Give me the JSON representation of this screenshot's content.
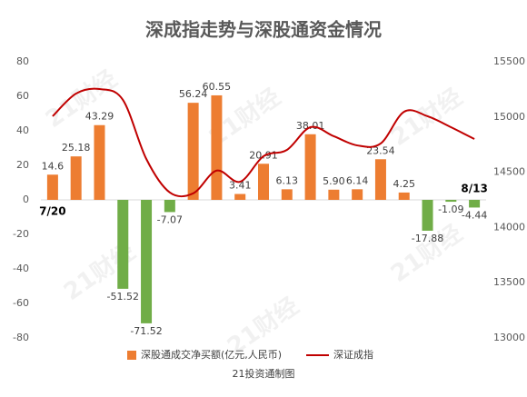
{
  "chart_data": {
    "type": "bar-line",
    "title": "深成指走势与深股通资金情况",
    "source": "21投资通制图",
    "watermark": "21财经",
    "categories": [
      "7/20",
      null,
      null,
      null,
      null,
      null,
      null,
      null,
      null,
      null,
      null,
      null,
      null,
      null,
      null,
      null,
      null,
      null,
      "8/13"
    ],
    "series": [
      {
        "name": "深股通成交净买额(亿元,人民币)",
        "type": "bar",
        "color": "#ed7d31",
        "negative_color": "#70ad47",
        "values": [
          14.6,
          25.18,
          43.29,
          -51.52,
          -71.52,
          -7.07,
          56.24,
          60.55,
          3.41,
          20.91,
          6.13,
          38.01,
          5.9,
          6.14,
          23.54,
          4.25,
          -17.88,
          -1.09,
          -4.44
        ],
        "value_labels": [
          "14.6",
          "25.18",
          "43.29",
          "-51.52",
          "-71.52",
          "-7.07",
          "56.24",
          "60.55",
          "3.41",
          "20.91",
          "6.13",
          "38.01",
          "5.90",
          "6.14",
          "23.54",
          "4.25",
          "-17.88",
          "-1.09",
          "-4.44"
        ]
      },
      {
        "name": "深证成指",
        "type": "line",
        "axis": "y2",
        "color": "#c00000",
        "values": [
          15007,
          15212,
          15253,
          15155,
          14620,
          14317,
          14309,
          14515,
          14414,
          14645,
          14702,
          14908,
          14826,
          14743,
          14760,
          15048,
          15007,
          14908,
          14801
        ]
      }
    ],
    "ylim": [
      -80,
      80
    ],
    "yticks": [
      -80,
      -60,
      -40,
      -20,
      0,
      20,
      40,
      60,
      80
    ],
    "y2lim": [
      13000,
      15500
    ],
    "y2ticks": [
      13000,
      13500,
      14000,
      14500,
      15000,
      15500
    ],
    "smooth": true
  }
}
